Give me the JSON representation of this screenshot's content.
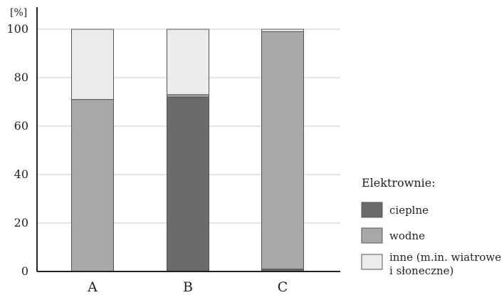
{
  "chart_data": {
    "type": "bar",
    "stacked": true,
    "unit_label": "[%]",
    "categories": [
      "A",
      "B",
      "C"
    ],
    "ylim": [
      0,
      100
    ],
    "yticks": [
      "0",
      "20",
      "40",
      "60",
      "80",
      "100"
    ],
    "grid": true,
    "legend_title": "Elektrownie:",
    "legend_position": "right",
    "series": [
      {
        "name": "cieplne",
        "color": "#6a6a6a",
        "values": [
          0,
          72,
          1
        ]
      },
      {
        "name": "wodne",
        "color": "#a8a8a8",
        "values": [
          71,
          1,
          98
        ]
      },
      {
        "name_lines": [
          "inne (m.in. wiatrowe",
          "i słoneczne)"
        ],
        "color": "#ebebeb",
        "values": [
          29,
          27,
          1
        ]
      }
    ]
  }
}
